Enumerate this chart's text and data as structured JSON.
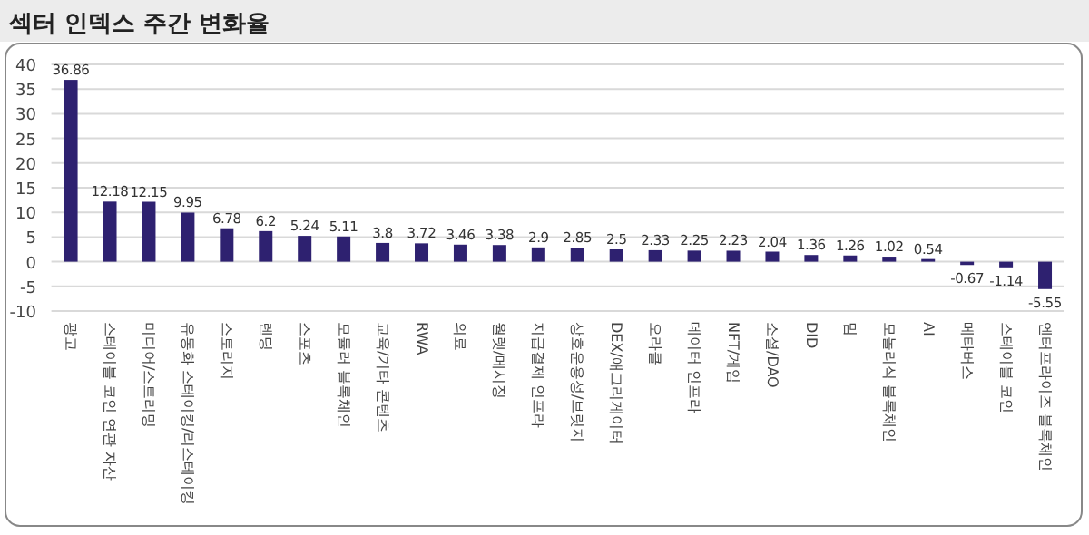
{
  "chart_data": {
    "type": "bar",
    "title": "섹터 인덱스 주간 변화율",
    "categories": [
      "광고",
      "스테이블 코인 연관 자산",
      "미디어/스트리밍",
      "유동화 스테이킹/리스테이킹",
      "스토리지",
      "렌딩",
      "스포츠",
      "모듈러 블록체인",
      "교육/기타 콘텐츠",
      "RWA",
      "의료",
      "월렛/메시징",
      "지급결제 인프라",
      "상호운용성/브릿지",
      "DEX/애그리게이터",
      "오라클",
      "데이터 인프라",
      "NFT/게임",
      "소셜/DAO",
      "DID",
      "밈",
      "모놀리식 블록체인",
      "AI",
      "메타버스",
      "스테이블 코인",
      "엔터프라이즈 블록체인"
    ],
    "values": [
      36.86,
      12.18,
      12.15,
      9.95,
      6.78,
      6.2,
      5.24,
      5.11,
      3.8,
      3.72,
      3.46,
      3.38,
      2.9,
      2.85,
      2.5,
      2.33,
      2.25,
      2.23,
      2.04,
      1.36,
      1.26,
      1.02,
      0.54,
      -0.67,
      -1.14,
      -5.55
    ],
    "color": "#2e2170",
    "ylim": [
      -10,
      40
    ],
    "yticks": [
      -10,
      -5,
      0,
      5,
      10,
      15,
      20,
      25,
      30,
      35,
      40
    ],
    "grid": "y",
    "data_labels": true
  }
}
